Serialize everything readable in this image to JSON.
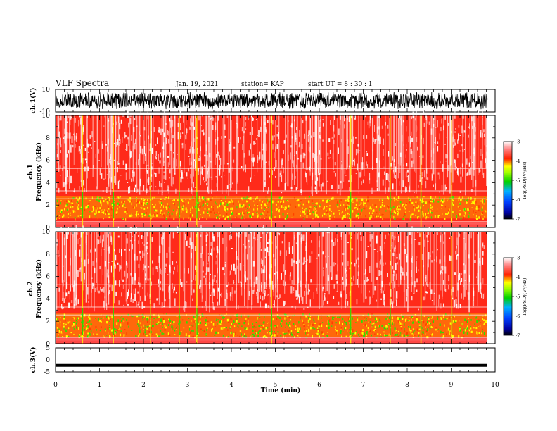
{
  "header": {
    "title": "VLF Spectra",
    "date": "Jan. 19, 2021",
    "station": "station= KAP",
    "start_ut": "start UT =  8 : 30 : 1"
  },
  "chart_data": [
    {
      "type": "line",
      "panel": "ch1-waveform",
      "ylabel": "ch.1(V)",
      "ylim": [
        -10,
        10
      ],
      "y_ticks": [
        "10",
        "-10"
      ],
      "xlim": [
        0,
        10
      ],
      "x_data_end": 9.82,
      "signal": "dense noise filling roughly -8 to 8 V",
      "color": "#000000"
    },
    {
      "type": "heatmap",
      "panel": "ch1-spectrogram",
      "ylabel": "ch.1\nFrequency (kHz)",
      "ylim": [
        0,
        10
      ],
      "y_ticks": [
        "0",
        "2",
        "4",
        "6",
        "8",
        "10"
      ],
      "xlim": [
        0,
        10
      ],
      "x_data_end": 9.82,
      "colorbar": {
        "label": "log(PSD)(V²/Hz)",
        "range": [
          -7,
          -3
        ],
        "ticks": [
          "-3",
          "-4",
          "-5",
          "-6",
          "-7"
        ]
      },
      "dominant_color": "red / white background, yellow-green band 0.8–2.8 kHz",
      "impulsive_events_min": [
        0.6,
        1.3,
        2.15,
        2.8,
        3.2,
        4.9,
        6.7,
        7.6,
        8.3,
        9.0
      ]
    },
    {
      "type": "heatmap",
      "panel": "ch2-spectrogram",
      "ylabel": "ch.2\nFrequency (kHz)",
      "ylim": [
        0,
        10
      ],
      "y_ticks": [
        "0",
        "2",
        "4",
        "6",
        "8",
        "10"
      ],
      "xlim": [
        0,
        10
      ],
      "x_data_end": 9.82,
      "colorbar": {
        "label": "log(PSD)(V²/Hz)",
        "range": [
          -7,
          -3
        ],
        "ticks": [
          "-3",
          "-4",
          "-5",
          "-6",
          "-7"
        ]
      },
      "dominant_color": "red / white background, green-yellow band 0.6–2.7 kHz",
      "impulsive_events_min": [
        0.6,
        1.3,
        2.15,
        2.8,
        3.2,
        4.9,
        6.7,
        7.6,
        8.3,
        9.0
      ]
    },
    {
      "type": "line",
      "panel": "ch3-waveform",
      "ylabel": "ch.3(V)",
      "ylim": [
        -5,
        5
      ],
      "y_ticks": [
        "5",
        "0",
        "-5"
      ],
      "xlim": [
        0,
        10
      ],
      "x_data_end": 9.82,
      "level": -2.3,
      "color": "#000000"
    }
  ],
  "xaxis": {
    "label": "Time (min)",
    "ticks": [
      "0",
      "1",
      "2",
      "3",
      "4",
      "5",
      "6",
      "7",
      "8",
      "9",
      "10"
    ]
  },
  "colors": {
    "background": "#ffffff",
    "ink": "#000000",
    "spectrum_high": "#ff0000",
    "spectrum_mid": "#ffff00",
    "spectrum_low": "#00c000",
    "spectrum_min": "#0000c0"
  }
}
